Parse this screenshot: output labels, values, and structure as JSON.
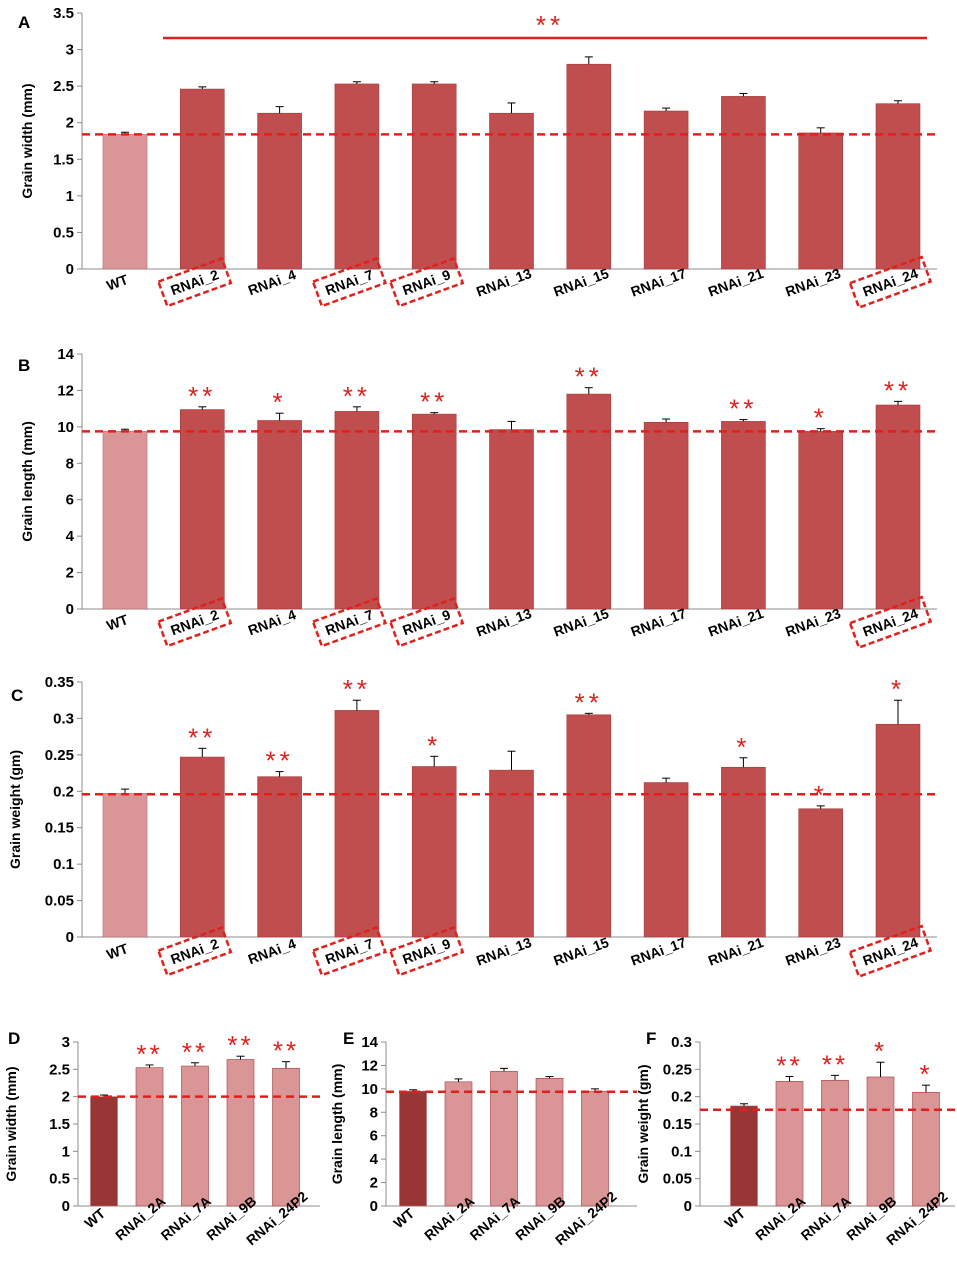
{
  "colors": {
    "wt_light": "#da9696",
    "rnai_dark": "#c04e4e",
    "wt_dark": "#983535",
    "rnai_light": "#da9696",
    "significance": "#e0201c",
    "error_bar": "#000000"
  },
  "chart_data": [
    {
      "panel": "A",
      "type": "bar",
      "ylabel": "Grain width (mm)",
      "ylim": [
        0,
        3.5
      ],
      "yticks": [
        "0",
        "0.5",
        "1",
        "1.5",
        "2",
        "2.5",
        "3",
        "3.5"
      ],
      "categories": [
        "WT",
        "RNAi_2",
        "RNAi_4",
        "RNAi_7",
        "RNAi_9",
        "RNAi_13",
        "RNAi_15",
        "RNAi_17",
        "RNAi_21",
        "RNAi_23",
        "RNAi_24"
      ],
      "boxed": [
        "RNAi_2",
        "RNAi_7",
        "RNAi_9",
        "RNAi_24"
      ],
      "values": [
        1.84,
        2.46,
        2.13,
        2.53,
        2.53,
        2.13,
        2.8,
        2.16,
        2.36,
        1.86,
        2.26
      ],
      "errors": [
        0.03,
        0.03,
        0.09,
        0.03,
        0.03,
        0.14,
        0.1,
        0.04,
        0.04,
        0.07,
        0.04
      ],
      "significance": [
        "",
        "",
        "",
        "",
        "",
        "",
        "",
        "",
        "",
        "",
        ""
      ],
      "group_significance": "**",
      "reference_line": 1.84
    },
    {
      "panel": "B",
      "type": "bar",
      "ylabel": "Grain length (mm)",
      "ylim": [
        0,
        14
      ],
      "yticks": [
        "0",
        "2",
        "4",
        "6",
        "8",
        "10",
        "12",
        "14"
      ],
      "categories": [
        "WT",
        "RNAi_2",
        "RNAi_4",
        "RNAi_7",
        "RNAi_9",
        "RNAi_13",
        "RNAi_15",
        "RNAi_17",
        "RNAi_21",
        "RNAi_23",
        "RNAi_24"
      ],
      "boxed": [
        "RNAi_2",
        "RNAi_7",
        "RNAi_9",
        "RNAi_24"
      ],
      "values": [
        9.75,
        10.95,
        10.35,
        10.85,
        10.7,
        9.85,
        11.8,
        10.25,
        10.3,
        9.75,
        11.2
      ],
      "errors": [
        0.12,
        0.15,
        0.4,
        0.25,
        0.08,
        0.45,
        0.35,
        0.18,
        0.1,
        0.15,
        0.2
      ],
      "significance": [
        "",
        "**",
        "*",
        "**",
        "**",
        "",
        "**",
        "",
        "**",
        "*",
        "**"
      ],
      "reference_line": 9.75
    },
    {
      "panel": "C",
      "type": "bar",
      "ylabel": "Grain weight (gm)",
      "ylim": [
        0,
        0.35
      ],
      "yticks": [
        "0",
        "0.05",
        "0.1",
        "0.15",
        "0.2",
        "0.25",
        "0.3",
        "0.35"
      ],
      "categories": [
        "WT",
        "RNAi_2",
        "RNAi_4",
        "RNAi_7",
        "RNAi_9",
        "RNAi_13",
        "RNAi_15",
        "RNAi_17",
        "RNAi_21",
        "RNAi_23",
        "RNAi_24"
      ],
      "boxed": [
        "RNAi_2",
        "RNAi_7",
        "RNAi_9",
        "RNAi_24"
      ],
      "values": [
        0.197,
        0.247,
        0.22,
        0.311,
        0.234,
        0.229,
        0.305,
        0.212,
        0.233,
        0.176,
        0.292
      ],
      "errors": [
        0.006,
        0.012,
        0.007,
        0.014,
        0.014,
        0.026,
        0.002,
        0.006,
        0.013,
        0.004,
        0.033
      ],
      "significance": [
        "",
        "**",
        "**",
        "**",
        "*",
        "",
        "**",
        "",
        "*",
        "*",
        "*"
      ],
      "reference_line": 0.196
    },
    {
      "panel": "D",
      "type": "bar",
      "ylabel": "Grain width (mm)",
      "ylim": [
        0,
        3
      ],
      "yticks": [
        "0",
        "0.5",
        "1",
        "1.5",
        "2",
        "2.5",
        "3"
      ],
      "categories": [
        "WT",
        "RNAi_2A",
        "RNAi_7A",
        "RNAi_9B",
        "RNAi_24P2"
      ],
      "values": [
        2.0,
        2.53,
        2.56,
        2.68,
        2.52
      ],
      "errors": [
        0.03,
        0.05,
        0.06,
        0.06,
        0.12
      ],
      "significance": [
        "",
        "**",
        "**",
        "**",
        "**"
      ],
      "reference_line": 2.0
    },
    {
      "panel": "E",
      "type": "bar",
      "ylabel": "Grain length (mm)",
      "ylim": [
        0,
        14
      ],
      "yticks": [
        "0",
        "2",
        "4",
        "6",
        "8",
        "10",
        "12",
        "14"
      ],
      "categories": [
        "WT",
        "RNAi_2A",
        "RNAi_7A",
        "RNAi_9B",
        "RNAi_24P2"
      ],
      "values": [
        9.8,
        10.6,
        11.5,
        10.9,
        9.8
      ],
      "errors": [
        0.12,
        0.25,
        0.25,
        0.15,
        0.2
      ],
      "significance": [
        "",
        "",
        "",
        "",
        ""
      ],
      "reference_line": 9.75
    },
    {
      "panel": "F",
      "type": "bar",
      "ylabel": "Grain weight (gm)",
      "ylim": [
        0,
        0.3
      ],
      "yticks": [
        "0",
        "0.05",
        "0.1",
        "0.15",
        "0.2",
        "0.25",
        "0.3"
      ],
      "categories": [
        "WT",
        "RNAi_2A",
        "RNAi_7A",
        "RNAi_9B",
        "RNAi_24P2"
      ],
      "values": [
        0.183,
        0.228,
        0.23,
        0.236,
        0.208
      ],
      "errors": [
        0.004,
        0.009,
        0.009,
        0.027,
        0.013
      ],
      "significance": [
        "",
        "**",
        "**",
        "*",
        "*"
      ],
      "reference_line": 0.176
    }
  ]
}
